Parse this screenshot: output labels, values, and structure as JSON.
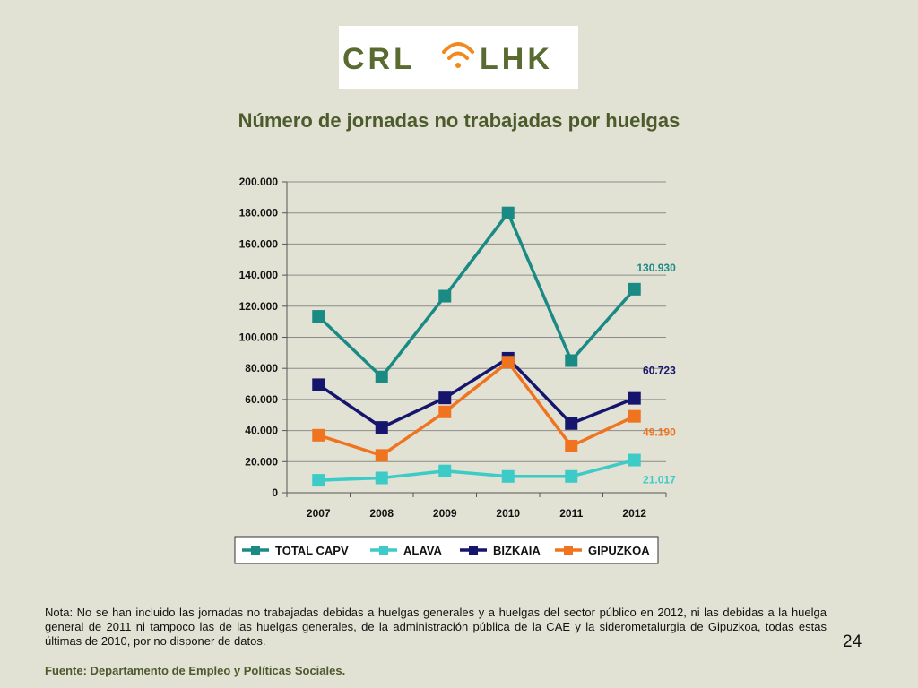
{
  "logo": {
    "left_text": "CRL",
    "right_text": "LHK",
    "colors": {
      "text": "#5a6b32",
      "signal": "#f08a1c"
    }
  },
  "slide": {
    "title": "Número de jornadas no trabajadas por huelgas",
    "note": "Nota: No se han incluido las jornadas no trabajadas debidas a huelgas generales y a huelgas del sector público en 2012, ni las debidas a la huelga general de 2011 ni tampoco las de las huelgas generales, de la administración pública de la CAE y la siderometalurgia de Gipuzkoa, todas estas últimas de 2010, por no disponer de datos.",
    "page_number": "24",
    "source": "Fuente: Departamento de Empleo y Políticas Sociales."
  },
  "chart_data": {
    "type": "line",
    "title": "",
    "xlabel": "",
    "ylabel": "",
    "categories": [
      "2007",
      "2008",
      "2009",
      "2010",
      "2011",
      "2012"
    ],
    "ylim": [
      0,
      200000
    ],
    "y_ticks": [
      0,
      20000,
      40000,
      60000,
      80000,
      100000,
      120000,
      140000,
      160000,
      180000,
      200000
    ],
    "y_tick_labels": [
      "0",
      "20.000",
      "40.000",
      "60.000",
      "80.000",
      "100.000",
      "120.000",
      "140.000",
      "160.000",
      "180.000",
      "200.000"
    ],
    "grid": true,
    "legend_position": "bottom",
    "marker": "square",
    "series": [
      {
        "name": "TOTAL CAPV",
        "color": "#1a8a84",
        "values": [
          113500,
          74500,
          126500,
          180000,
          85000,
          130930
        ],
        "end_label": "130.930"
      },
      {
        "name": "ALAVA",
        "color": "#3ccbc7",
        "values": [
          8000,
          9500,
          14000,
          10500,
          10500,
          21017
        ],
        "end_label": "21.017"
      },
      {
        "name": "BIZKAIA",
        "color": "#16156e",
        "values": [
          69500,
          42000,
          61000,
          86500,
          44500,
          60723
        ],
        "end_label": "60.723"
      },
      {
        "name": "GIPUZKOA",
        "color": "#f07320",
        "values": [
          37000,
          24000,
          52000,
          84000,
          30000,
          49190
        ],
        "end_label": "49.190"
      }
    ]
  }
}
